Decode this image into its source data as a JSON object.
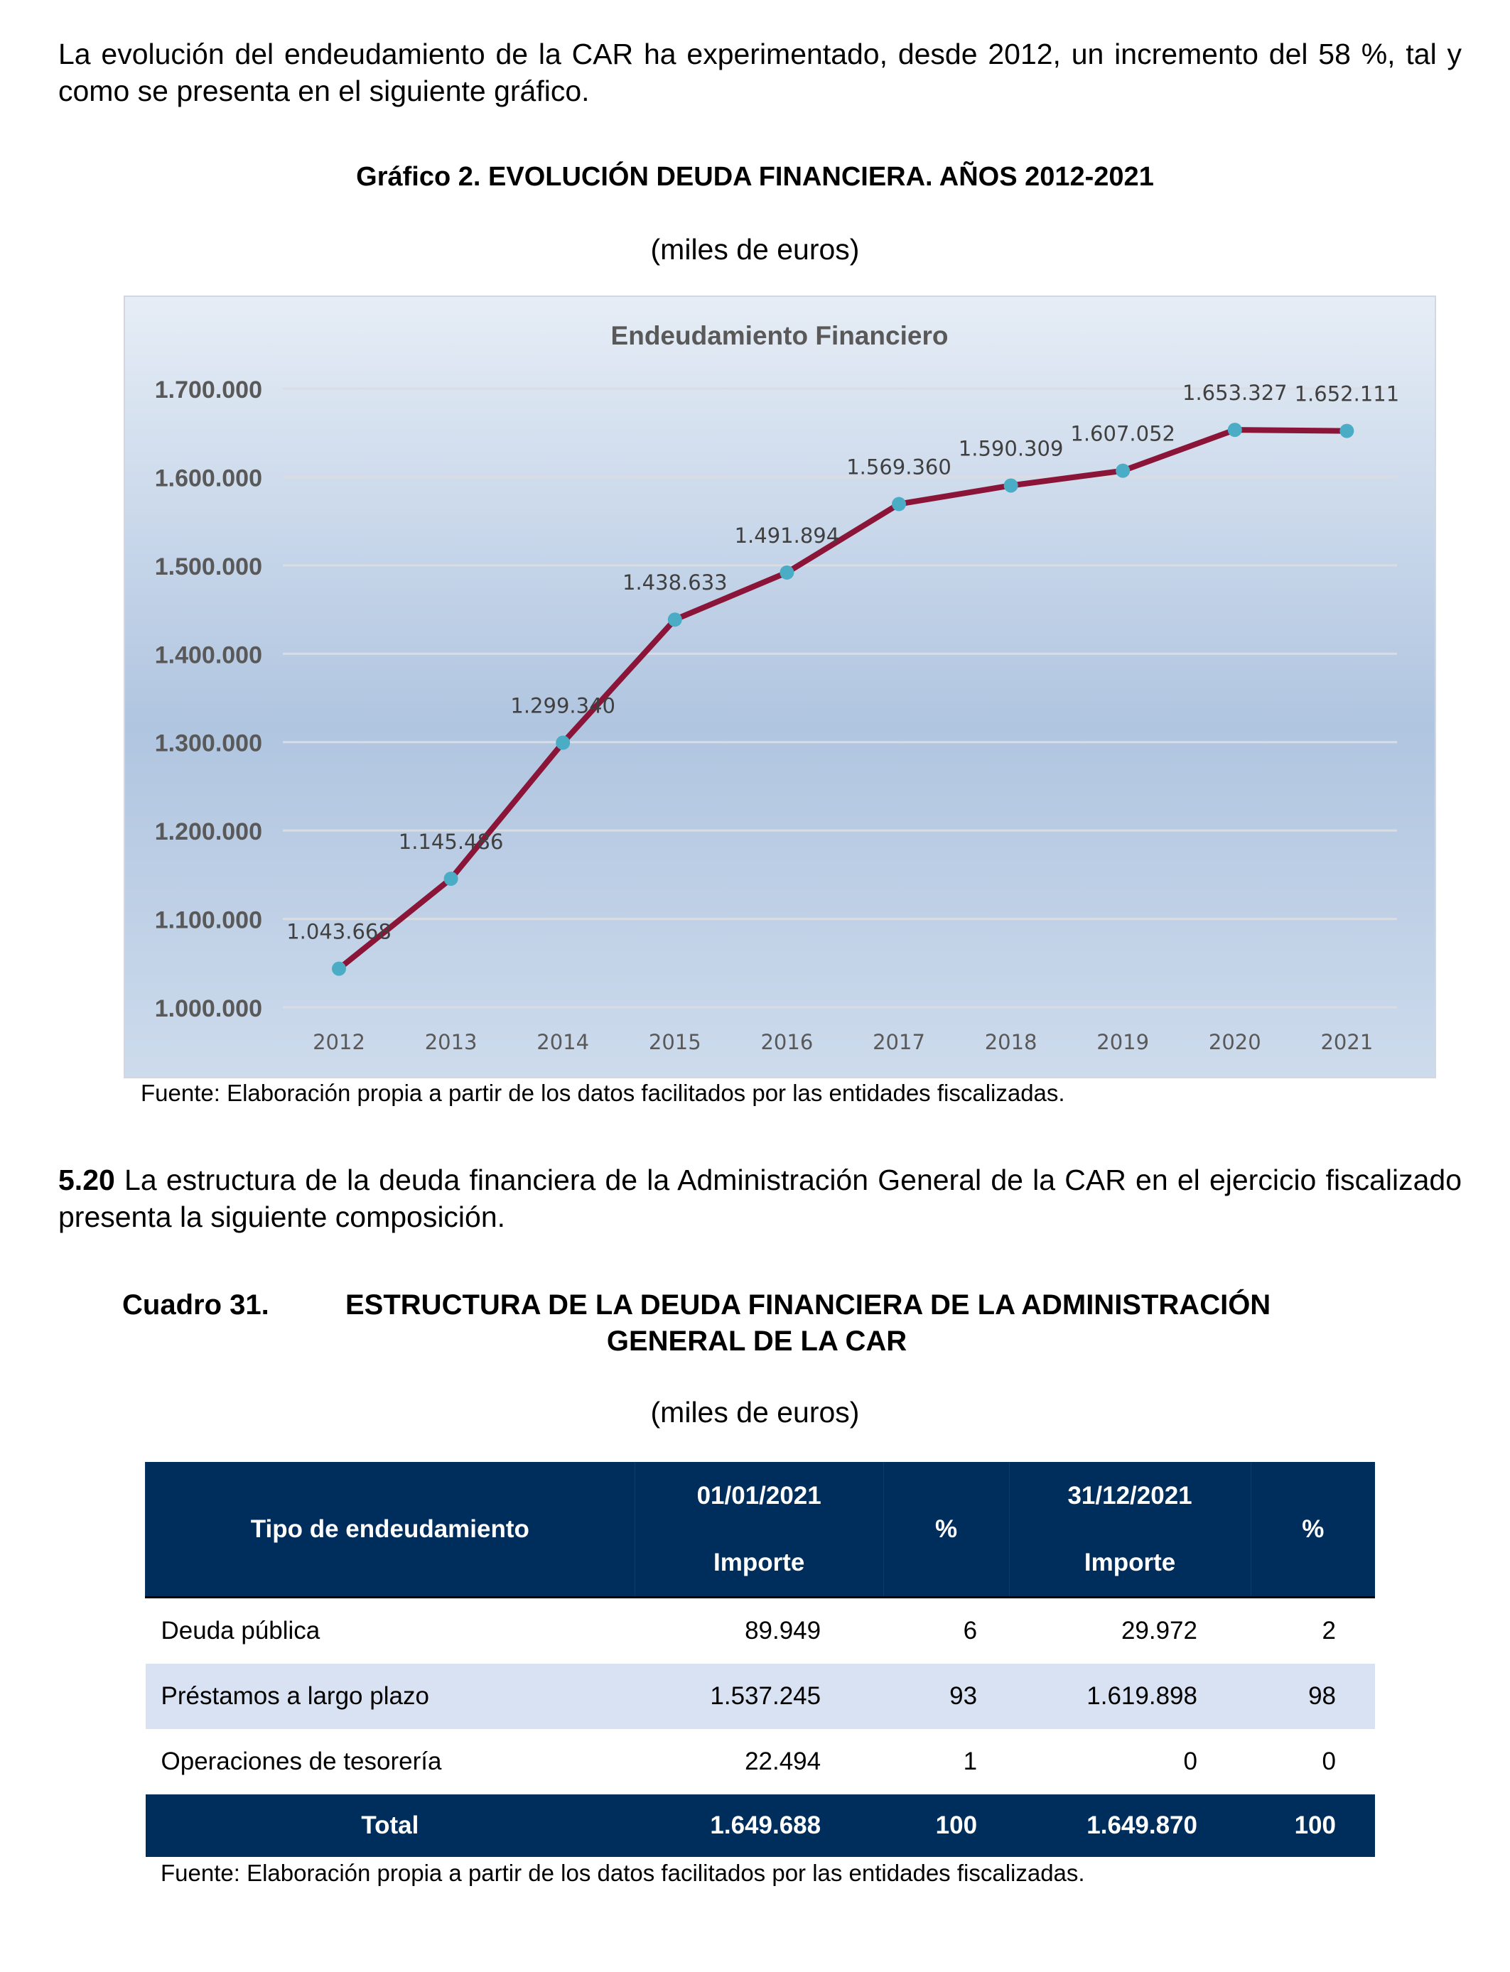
{
  "intro_text": "La evolución del endeudamiento de la CAR ha experimentado, desde 2012, un incremento del 58 %, tal y como se presenta en el siguiente gráfico.",
  "chart_caption": "Gráfico 2.  EVOLUCIÓN DEUDA FINANCIERA. AÑOS 2012-2021",
  "chart_units": "(miles de euros)",
  "chart_source": "Fuente: Elaboración propia a partir de los datos facilitados por las entidades fiscalizadas.",
  "chart_data": {
    "type": "line",
    "title": "Endeudamiento Financiero",
    "categories": [
      "2012",
      "2013",
      "2014",
      "2015",
      "2016",
      "2017",
      "2018",
      "2019",
      "2020",
      "2021"
    ],
    "values": [
      1043668,
      1145486,
      1299340,
      1438633,
      1491894,
      1569360,
      1590309,
      1607052,
      1653327,
      1652111
    ],
    "data_labels": [
      "1.043.668",
      "1.145.486",
      "1.299.340",
      "1.438.633",
      "1.491.894",
      "1.569.360",
      "1.590.309",
      "1.607.052",
      "1.653.327",
      "1.652.111"
    ],
    "ylim": [
      1000000,
      1700000
    ],
    "yticks": [
      "1.000.000",
      "1.100.000",
      "1.200.000",
      "1.300.000",
      "1.400.000",
      "1.500.000",
      "1.600.000",
      "1.700.000"
    ],
    "grid": true,
    "line_color": "#8b1538",
    "marker_color": "#4bacc6"
  },
  "section": {
    "number": "5.20",
    "text": " La estructura de la deuda financiera de la Administración General de la CAR en el ejercicio fiscalizado presenta la siguiente composición."
  },
  "table_caption": {
    "label": "Cuadro 31.",
    "title_line1": "ESTRUCTURA DE LA DEUDA FINANCIERA DE LA ADMINISTRACIÓN",
    "title_line2": "GENERAL DE LA CAR"
  },
  "table_units": "(miles de euros)",
  "table": {
    "headers": {
      "type": "Tipo de endeudamiento",
      "date1": "01/01/2021",
      "importe1": "Importe",
      "pct1": "%",
      "date2": "31/12/2021",
      "importe2": "Importe",
      "pct2": "%"
    },
    "rows": [
      [
        "Deuda pública",
        "89.949",
        "6",
        "29.972",
        "2"
      ],
      [
        "Préstamos a largo plazo",
        "1.537.245",
        "93",
        "1.619.898",
        "98"
      ],
      [
        "Operaciones de tesorería",
        "22.494",
        "1",
        "0",
        "0"
      ]
    ],
    "total": [
      "Total",
      "1.649.688",
      "100",
      "1.649.870",
      "100"
    ]
  },
  "table_source": "Fuente: Elaboración propia a partir de los datos facilitados por las entidades fiscalizadas."
}
